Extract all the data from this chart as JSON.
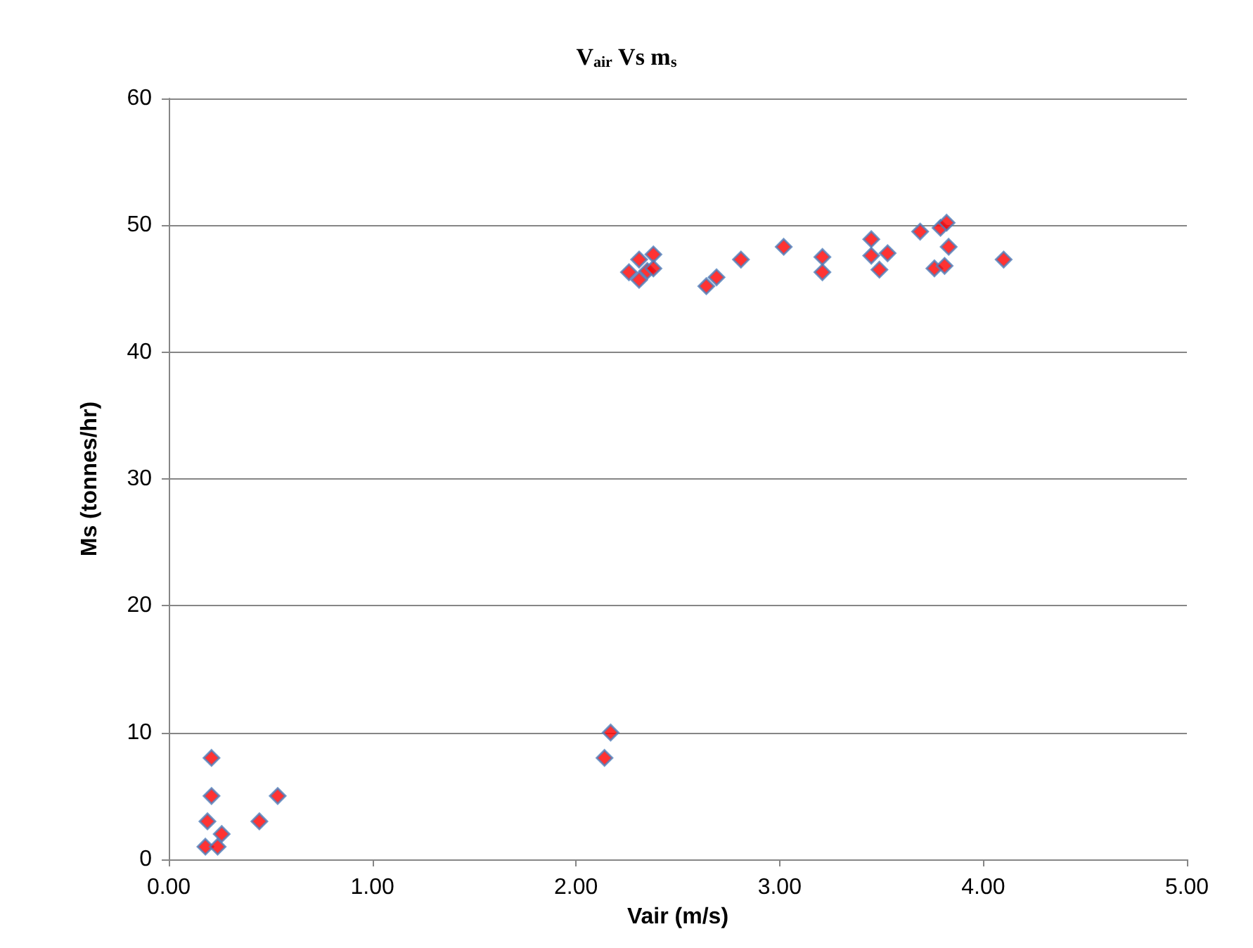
{
  "chart_data": {
    "type": "scatter",
    "title": "V$_{air}$ Vs m$_{s}$",
    "xlabel": "Vair (m/s)",
    "ylabel": "Ms (tonnes/hr)",
    "x": [
      0.21,
      0.21,
      0.19,
      0.26,
      0.18,
      0.24,
      0.445,
      0.535,
      2.14,
      2.17,
      2.26,
      2.31,
      2.31,
      2.35,
      2.38,
      2.38,
      2.64,
      2.69,
      2.81,
      3.02,
      3.21,
      3.21,
      3.45,
      3.45,
      3.49,
      3.53,
      3.69,
      3.76,
      3.79,
      3.81,
      3.82,
      3.83,
      4.1
    ],
    "series": [
      {
        "color": "#ff0000",
        "values": [
          8,
          5,
          3,
          2,
          1,
          1,
          3,
          5,
          8,
          10,
          46.3,
          47.3,
          45.7,
          46.4,
          47.7,
          46.6,
          45.2,
          45.9,
          47.3,
          48.3,
          47.5,
          46.3,
          48.9,
          47.6,
          46.5,
          47.8,
          49.5,
          46.6,
          49.8,
          46.8,
          50.2,
          48.3,
          47.3
        ]
      }
    ],
    "xlim": [
      0,
      5
    ],
    "xticks": [
      {
        "value": 0,
        "label": "0.00"
      },
      {
        "value": 1,
        "label": "1.00"
      },
      {
        "value": 2,
        "label": "2.00"
      },
      {
        "value": 3,
        "label": "3.00"
      },
      {
        "value": 4,
        "label": "4.00"
      },
      {
        "value": 5,
        "label": "5.00"
      }
    ],
    "ylim": [
      0,
      60
    ],
    "yticks": [
      0,
      10,
      20,
      30,
      40,
      50,
      60
    ],
    "grid": "y",
    "marker": "diamond"
  }
}
